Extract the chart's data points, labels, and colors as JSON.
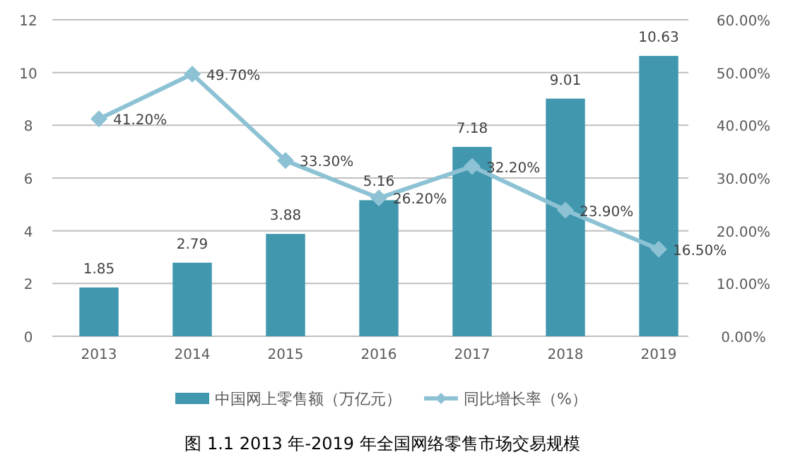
{
  "chart_data": {
    "type": "bar",
    "title": "图 1.1 2013 年-2019 年全国网络零售市场交易规模",
    "categories": [
      "2013",
      "2014",
      "2015",
      "2016",
      "2017",
      "2018",
      "2019"
    ],
    "series": [
      {
        "name": "中国网上零售额（万亿元）",
        "color": "#4097ae",
        "values": [
          1.85,
          2.79,
          3.88,
          5.16,
          7.18,
          9.01,
          10.63
        ],
        "value_labels": [
          "1.85",
          "2.79",
          "3.88",
          "5.16",
          "7.18",
          "9.01",
          "10.63"
        ]
      },
      {
        "name": "同比增长率（%）",
        "type": "line",
        "axis": "y2",
        "color": "#8cc2d4",
        "marker": "diamond",
        "values": [
          41.2,
          49.7,
          33.3,
          26.2,
          32.2,
          23.9,
          16.5
        ],
        "value_labels": [
          "41.20%",
          "49.70%",
          "33.30%",
          "26.20%",
          "32.20%",
          "23.90%",
          "16.50%"
        ]
      }
    ],
    "ylim": [
      0,
      12
    ],
    "yticks": [
      0,
      2,
      4,
      6,
      8,
      10,
      12
    ],
    "y2lim": [
      0,
      60
    ],
    "y2ticks": [
      {
        "value": 0,
        "label": "0.00%"
      },
      {
        "value": 10,
        "label": "10.00%"
      },
      {
        "value": 20,
        "label": "20.00%"
      },
      {
        "value": 30,
        "label": "30.00%"
      },
      {
        "value": 40,
        "label": "40.00%"
      },
      {
        "value": 50,
        "label": "50.00%"
      },
      {
        "value": 60,
        "label": "60.00%"
      }
    ],
    "grid": "y",
    "legend": "bottom"
  }
}
